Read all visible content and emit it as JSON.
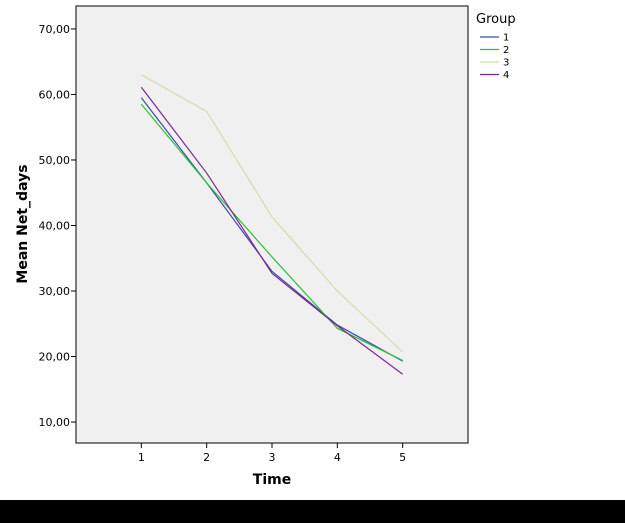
{
  "chart_data": {
    "type": "line",
    "title": "",
    "xlabel": "Time",
    "ylabel": "Mean Net_days",
    "x": [
      1,
      2,
      3,
      4,
      5
    ],
    "x_tick_labels": [
      "1",
      "2",
      "3",
      "4",
      "5"
    ],
    "y_tick_labels": [
      "10,00",
      "20,00",
      "30,00",
      "40,00",
      "50,00",
      "60,00",
      "70,00"
    ],
    "y_ticks": [
      10,
      20,
      30,
      40,
      50,
      60,
      70
    ],
    "xlim": [
      0,
      6
    ],
    "ylim": [
      6.8,
      73.5
    ],
    "grid": false,
    "legend_title": "Group",
    "legend_position": "right",
    "series": [
      {
        "name": "1",
        "color": "#3c4fa0",
        "values": [
          59.5,
          46.5,
          33.0,
          24.8,
          19.3
        ]
      },
      {
        "name": "2",
        "color": "#2fbf3a",
        "values": [
          58.5,
          46.5,
          35.2,
          24.3,
          19.4
        ]
      },
      {
        "name": "3",
        "color": "#d6dcb0",
        "values": [
          63.0,
          57.4,
          41.3,
          30.0,
          20.7
        ]
      },
      {
        "name": "4",
        "color": "#7b2a8f",
        "values": [
          61.1,
          48.0,
          32.7,
          24.7,
          17.3
        ]
      }
    ]
  }
}
